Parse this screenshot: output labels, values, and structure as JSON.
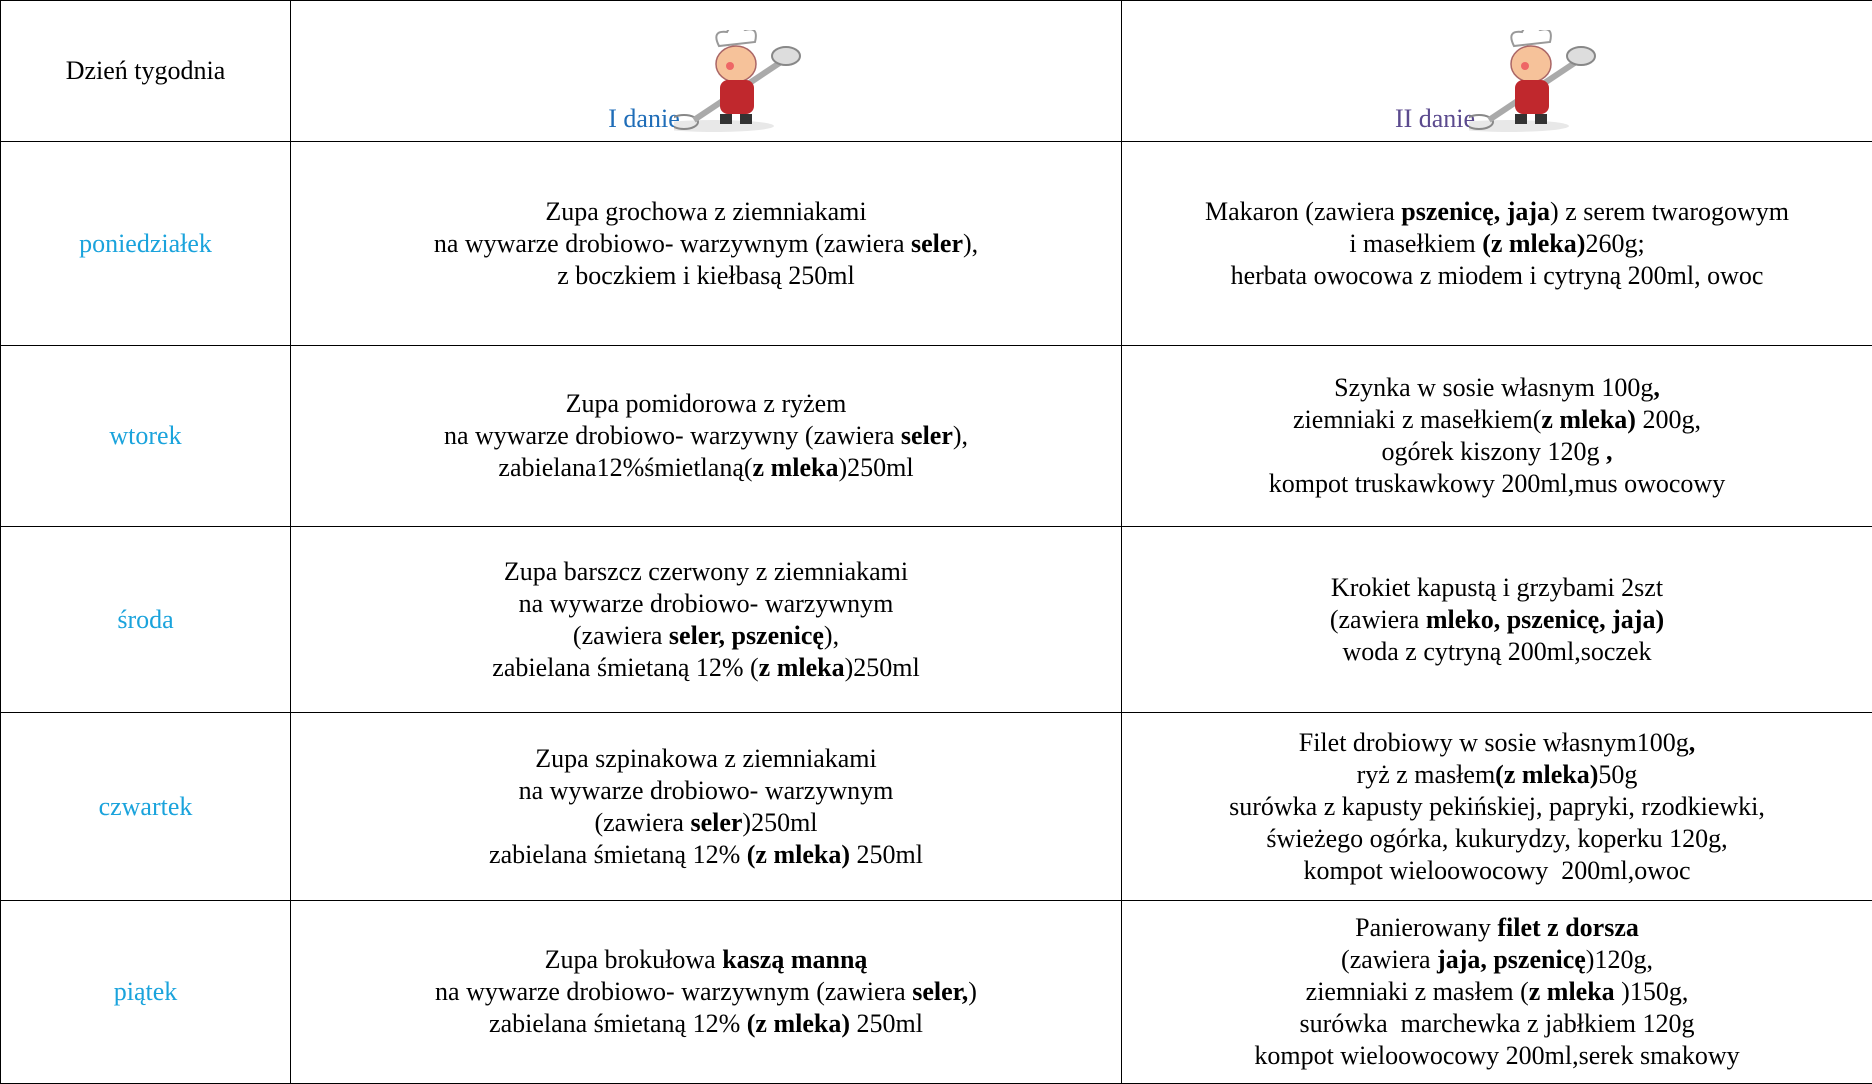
{
  "header": {
    "day": "Dzień tygodnia",
    "first": "I danie",
    "second": "II danie"
  },
  "rows": [
    {
      "day": "poniedziałek",
      "soup": [
        [
          "Zupa grochowa z ziemniakami"
        ],
        [
          "na wywarze drobiowo- warzywnym (zawiera ",
          {
            "text": "seler",
            "bold": true
          },
          "),"
        ],
        [
          "z boczkiem i kiełbasą 250ml"
        ]
      ],
      "main": [
        [
          "Makaron (zawiera ",
          {
            "text": "pszenicę, jaja",
            "bold": true
          },
          ") z serem twarogowym"
        ],
        [
          "i masełkiem ",
          {
            "text": "(z mleka)",
            "bold": true
          },
          "260g;"
        ],
        [
          "herbata owocowa z miodem i cytryną 200ml, owoc"
        ]
      ]
    },
    {
      "day": "wtorek",
      "soup": [
        [
          "Zupa pomidorowa z ryżem"
        ],
        [
          "na wywarze drobiowo- warzywny (zawiera ",
          {
            "text": "seler",
            "bold": true
          },
          "),"
        ],
        [
          "zabielana12%śmietlaną(",
          {
            "text": "z mleka",
            "bold": true
          },
          ")250ml"
        ]
      ],
      "main": [
        [
          "Szynka w sosie własnym 100g",
          {
            "text": ",",
            "bold": true
          }
        ],
        [
          "ziemniaki z masełkiem(",
          {
            "text": "z mleka)",
            "bold": true
          },
          " 200g,"
        ],
        [
          "ogórek kiszony 120g ",
          {
            "text": ",",
            "bold": true
          }
        ],
        [
          "kompot truskawkowy 200ml,mus owocowy"
        ]
      ]
    },
    {
      "day": "środa",
      "soup": [
        [
          "Zupa barszcz czerwony z ziemniakami"
        ],
        [
          "na wywarze drobiowo- warzywnym"
        ],
        [
          "(zawiera ",
          {
            "text": "seler, pszenicę",
            "bold": true
          },
          "),"
        ],
        [
          "zabielana śmietaną 12% (",
          {
            "text": "z mleka",
            "bold": true
          },
          ")250ml"
        ]
      ],
      "main": [
        [
          "Krokiet kapustą i grzybami 2szt"
        ],
        [
          "(zawiera ",
          {
            "text": "mleko, pszenicę, jaja)",
            "bold": true
          }
        ],
        [
          "woda z cytryną 200ml,soczek"
        ]
      ]
    },
    {
      "day": "czwartek",
      "soup": [
        [
          "Zupa szpinakowa z ziemniakami"
        ],
        [
          "na wywarze drobiowo- warzywnym"
        ],
        [
          "(zawiera ",
          {
            "text": "seler",
            "bold": true
          },
          ")250ml"
        ],
        [
          "zabielana śmietaną 12% ",
          {
            "text": "(z mleka)",
            "bold": true
          },
          " 250ml"
        ]
      ],
      "main": [
        [
          "Filet drobiowy w sosie własnym100g",
          {
            "text": ",",
            "bold": true
          }
        ],
        [
          "ryż z masłem",
          {
            "text": "(z mleka)",
            "bold": true
          },
          "50g"
        ],
        [
          "surówka z kapusty pekińskiej, papryki, rzodkiewki,"
        ],
        [
          "świeżego ogórka, kukurydzy, koperku 120g,"
        ],
        [
          "kompot wieloowocowy  200ml,owoc"
        ]
      ]
    },
    {
      "day": "piątek",
      "soup": [
        [
          "Zupa brokułowa ",
          {
            "text": "kaszą manną",
            "bold": true
          }
        ],
        [
          "na wywarze drobiowo- warzywnym (zawiera ",
          {
            "text": "seler,",
            "bold": true
          },
          ")"
        ],
        [
          "zabielana śmietaną 12% ",
          {
            "text": "(z mleka)",
            "bold": true
          },
          " 250ml"
        ]
      ],
      "main": [
        [
          "Panierowany ",
          {
            "text": "filet z dorsza",
            "bold": true
          }
        ],
        [
          "(zawiera ",
          {
            "text": "jaja, pszenicę",
            "bold": true
          },
          ")120g,"
        ],
        [
          "ziemniaki z masłem (",
          {
            "text": "z mleka",
            "bold": true
          },
          " )150g,"
        ],
        [
          "surówka  marchewka z jabłkiem 120g"
        ],
        [
          "kompot wieloowocowy 200ml,serek smakowy"
        ]
      ]
    }
  ]
}
